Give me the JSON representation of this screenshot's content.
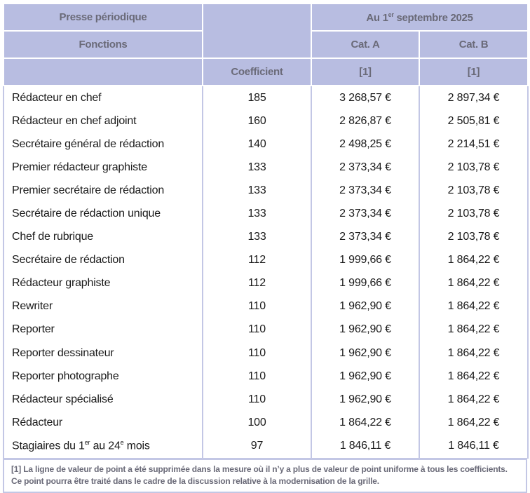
{
  "header": {
    "title": "Presse périodique",
    "date_prefix": "Au 1",
    "date_sup": "er",
    "date_suffix": " septembre 2025",
    "fonctions": "Fonctions",
    "cat_a": "Cat. A",
    "cat_b": "Cat. B",
    "coefficient": "Coefficient",
    "note_a": "[1]",
    "note_b": "[1]"
  },
  "rows": [
    {
      "fonction": "Rédacteur en chef",
      "coef": "185",
      "a": "3 268,57 €",
      "b": "2 897,34 €"
    },
    {
      "fonction": "Rédacteur en chef adjoint",
      "coef": "160",
      "a": "2 826,87 €",
      "b": "2 505,81 €"
    },
    {
      "fonction": "Secrétaire général de rédaction",
      "coef": "140",
      "a": "2 498,25 €",
      "b": "2 214,51 €"
    },
    {
      "fonction": "Premier rédacteur graphiste",
      "coef": "133",
      "a": "2 373,34 €",
      "b": "2 103,78 €"
    },
    {
      "fonction": "Premier secrétaire de rédaction",
      "coef": "133",
      "a": "2 373,34 €",
      "b": "2 103,78 €"
    },
    {
      "fonction": "Secrétaire de rédaction unique",
      "coef": "133",
      "a": "2 373,34 €",
      "b": "2 103,78 €"
    },
    {
      "fonction": "Chef de rubrique",
      "coef": "133",
      "a": "2 373,34 €",
      "b": "2 103,78 €"
    },
    {
      "fonction": "Secrétaire de rédaction",
      "coef": "112",
      "a": "1 999,66 €",
      "b": "1 864,22 €"
    },
    {
      "fonction": "Rédacteur graphiste",
      "coef": "112",
      "a": "1 999,66 €",
      "b": "1 864,22 €"
    },
    {
      "fonction": "Rewriter",
      "coef": "110",
      "a": "1 962,90 €",
      "b": "1 864,22 €"
    },
    {
      "fonction": "Reporter",
      "coef": "110",
      "a": "1 962,90 €",
      "b": "1 864,22 €"
    },
    {
      "fonction": "Reporter dessinateur",
      "coef": "110",
      "a": "1 962,90 €",
      "b": "1 864,22 €"
    },
    {
      "fonction": "Reporter photographe",
      "coef": "110",
      "a": "1 962,90 €",
      "b": "1 864,22 €"
    },
    {
      "fonction": "Rédacteur spécialisé",
      "coef": "110",
      "a": "1 962,90 €",
      "b": "1 864,22 €"
    },
    {
      "fonction": "Rédacteur",
      "coef": "100",
      "a": "1 864,22 €",
      "b": "1 864,22 €"
    }
  ],
  "last_row": {
    "p1": "Stagiaires du 1",
    "s1": "er",
    "p2": " au 24",
    "s2": "e",
    "p3": " mois",
    "coef": "97",
    "a": "1 846,11 €",
    "b": "1 846,11 €"
  },
  "footnote": "[1] La ligne de valeur de point a été supprimée dans la mesure où il n’y a plus de valeur de point uniforme à tous les coefficients. Ce point pourra être traité dans le cadre de la discussion relative à la modernisation de la grille."
}
